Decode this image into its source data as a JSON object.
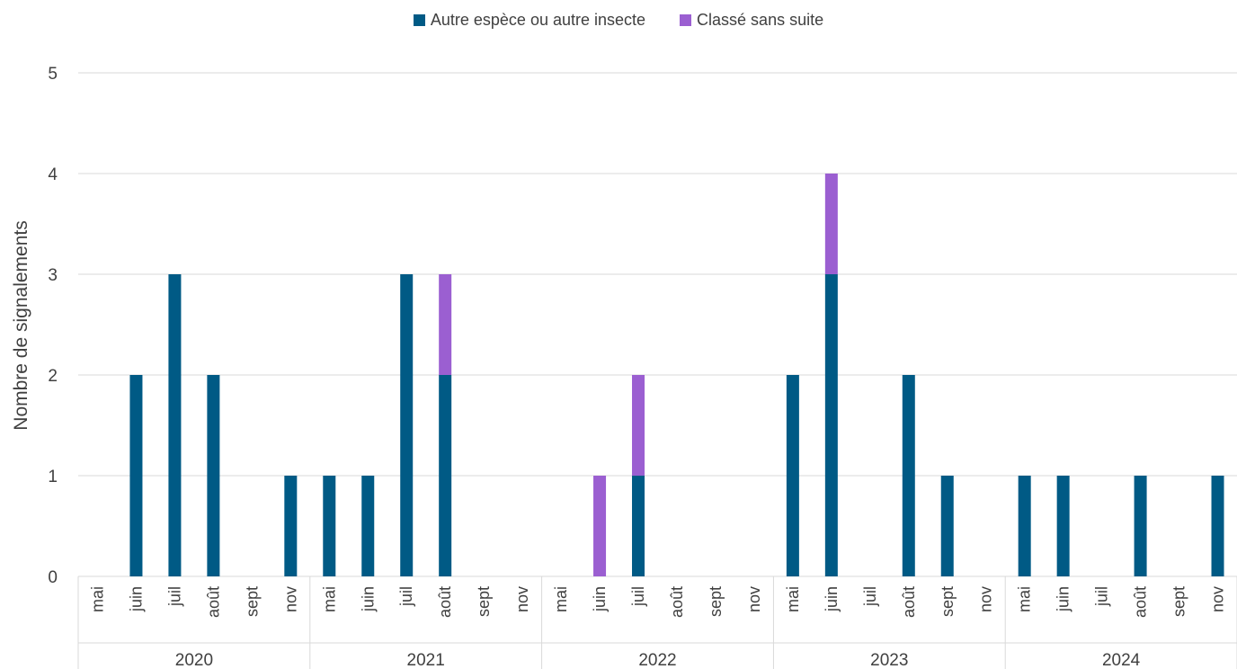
{
  "chart_data": {
    "type": "bar",
    "stacked": true,
    "ylabel": "Nombre de signalements",
    "ylim": [
      0,
      5
    ],
    "yticks": [
      "0",
      "1",
      "2",
      "3",
      "4",
      "5"
    ],
    "grid": true,
    "legend_position": "top-center",
    "groups": [
      {
        "year": "2020",
        "months": [
          "mai",
          "juin",
          "juil",
          "août",
          "sept",
          "nov"
        ]
      },
      {
        "year": "2021",
        "months": [
          "mai",
          "juin",
          "juil",
          "août",
          "sept",
          "nov"
        ]
      },
      {
        "year": "2022",
        "months": [
          "mai",
          "juin",
          "juil",
          "août",
          "sept",
          "nov"
        ]
      },
      {
        "year": "2023",
        "months": [
          "mai",
          "juin",
          "juil",
          "août",
          "sept",
          "nov"
        ]
      },
      {
        "year": "2024",
        "months": [
          "mai",
          "juin",
          "juil",
          "août",
          "sept",
          "nov"
        ]
      }
    ],
    "series": [
      {
        "name": "Autre espèce ou autre insecte",
        "color": "#005a85",
        "values": [
          0,
          2,
          3,
          2,
          0,
          1,
          1,
          1,
          3,
          2,
          0,
          0,
          0,
          0,
          1,
          0,
          0,
          0,
          2,
          3,
          0,
          2,
          1,
          0,
          1,
          1,
          0,
          1,
          0,
          1
        ]
      },
      {
        "name": "Classé sans suite",
        "color": "#9b5fd1",
        "values": [
          0,
          0,
          0,
          0,
          0,
          0,
          0,
          0,
          0,
          1,
          0,
          0,
          0,
          1,
          1,
          0,
          0,
          0,
          0,
          1,
          0,
          0,
          0,
          0,
          0,
          0,
          0,
          0,
          0,
          0
        ]
      }
    ]
  }
}
